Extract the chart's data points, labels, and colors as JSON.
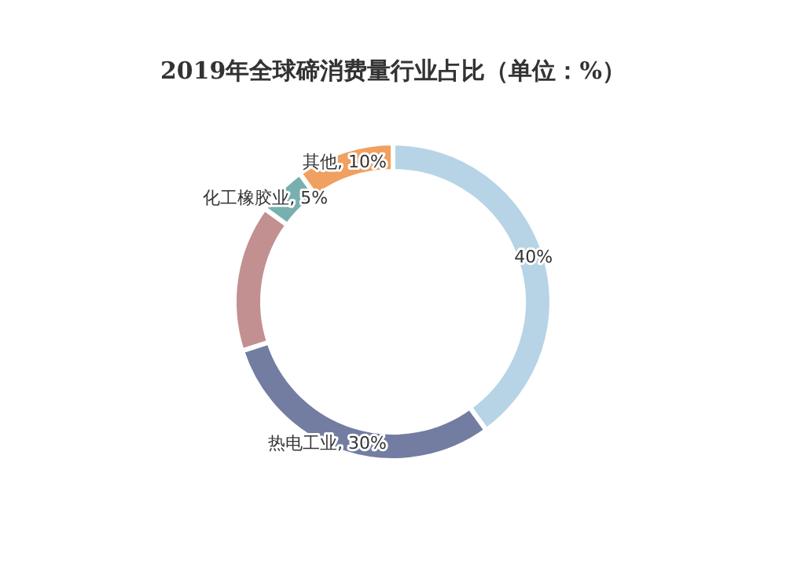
{
  "chart_data": {
    "type": "donut",
    "title": "2019年全球碲消费量行业占比（单位：%）",
    "categories": [
      null,
      "热电工业",
      null,
      "化工橡胶业",
      "其他"
    ],
    "values": [
      40,
      30,
      15,
      5,
      10
    ],
    "value_labels": [
      "40%",
      "30%",
      null,
      "5%",
      "10%"
    ],
    "colors": [
      "#b7d4e6",
      "#737da2",
      "#c29090",
      "#78b0b0",
      "#f0a060"
    ]
  }
}
